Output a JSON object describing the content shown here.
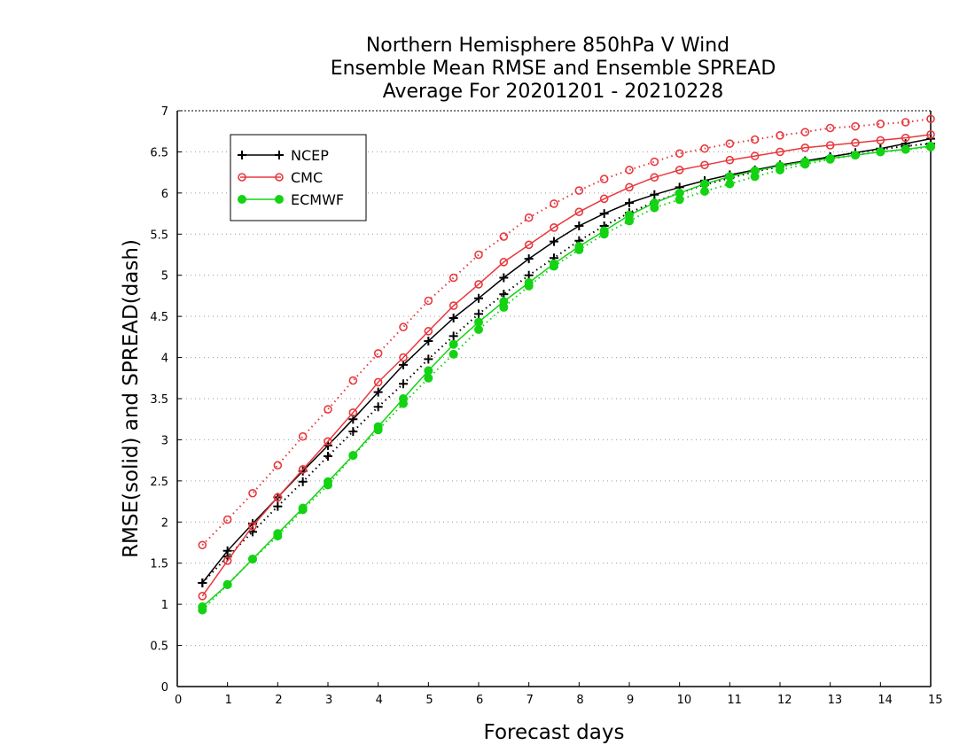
{
  "chart_data": {
    "type": "line",
    "title_lines": [
      "Northern Hemisphere 850hPa V Wind",
      "Ensemble Mean RMSE and Ensemble SPREAD",
      "Average For 20201201 - 20210228"
    ],
    "xlabel": "Forecast days",
    "ylabel": "RMSE(solid) and SPREAD(dash)",
    "xlim": [
      0,
      15
    ],
    "ylim": [
      0,
      7
    ],
    "xticks": [
      0,
      1,
      2,
      3,
      4,
      5,
      6,
      7,
      8,
      9,
      10,
      11,
      12,
      13,
      14,
      15
    ],
    "yticks": [
      0,
      0.5,
      1,
      1.5,
      2,
      2.5,
      3,
      3.5,
      4,
      4.5,
      5,
      5.5,
      6,
      6.5,
      7
    ],
    "ytick_labels": [
      "0",
      "0.5",
      "1",
      "1.5",
      "2",
      "2.5",
      "3",
      "3.5",
      "4",
      "4.5",
      "5",
      "5.5",
      "6",
      "6.5",
      "7"
    ],
    "grid": "horizontal-dotted",
    "legend_position": "top-left",
    "x": [
      0.5,
      1,
      1.5,
      2,
      2.5,
      3,
      3.5,
      4,
      4.5,
      5,
      5.5,
      6,
      6.5,
      7,
      7.5,
      8,
      8.5,
      9,
      9.5,
      10,
      10.5,
      11,
      11.5,
      12,
      12.5,
      13,
      13.5,
      14,
      14.5,
      15
    ],
    "series": [
      {
        "name": "NCEP",
        "color": "#000000",
        "marker": "plus",
        "rmse": [
          1.26,
          1.65,
          1.98,
          2.3,
          2.62,
          2.93,
          3.25,
          3.58,
          3.91,
          4.2,
          4.48,
          4.72,
          4.97,
          5.2,
          5.41,
          5.6,
          5.75,
          5.88,
          5.98,
          6.07,
          6.15,
          6.22,
          6.28,
          6.34,
          6.39,
          6.44,
          6.49,
          6.54,
          6.6,
          6.66
        ],
        "spread": [
          1.26,
          1.58,
          1.88,
          2.19,
          2.49,
          2.8,
          3.1,
          3.4,
          3.68,
          3.98,
          4.26,
          4.53,
          4.77,
          5.0,
          5.21,
          5.42,
          5.6,
          5.76,
          5.89,
          6.0,
          6.1,
          6.18,
          6.26,
          6.32,
          6.38,
          6.44,
          6.49,
          6.53,
          6.57,
          6.6
        ]
      },
      {
        "name": "CMC",
        "color": "#e8383d",
        "marker": "open-circle",
        "rmse": [
          1.1,
          1.53,
          1.95,
          2.3,
          2.64,
          2.98,
          3.33,
          3.7,
          4.0,
          4.32,
          4.63,
          4.89,
          5.16,
          5.37,
          5.58,
          5.77,
          5.93,
          6.07,
          6.19,
          6.28,
          6.34,
          6.4,
          6.45,
          6.5,
          6.55,
          6.58,
          6.61,
          6.64,
          6.67,
          6.71
        ],
        "spread": [
          1.72,
          2.03,
          2.35,
          2.69,
          3.04,
          3.37,
          3.72,
          4.05,
          4.37,
          4.69,
          4.97,
          5.25,
          5.47,
          5.7,
          5.87,
          6.03,
          6.17,
          6.28,
          6.38,
          6.48,
          6.54,
          6.6,
          6.65,
          6.7,
          6.74,
          6.79,
          6.81,
          6.84,
          6.86,
          6.9
        ]
      },
      {
        "name": "ECMWF",
        "color": "#13d313",
        "marker": "filled-circle",
        "rmse": [
          0.97,
          1.24,
          1.55,
          1.86,
          2.17,
          2.49,
          2.81,
          3.16,
          3.5,
          3.84,
          4.16,
          4.43,
          4.68,
          4.91,
          5.14,
          5.35,
          5.54,
          5.73,
          5.88,
          6.0,
          6.11,
          6.2,
          6.27,
          6.33,
          6.38,
          6.42,
          6.46,
          6.5,
          6.53,
          6.57
        ],
        "spread": [
          0.93,
          1.24,
          1.55,
          1.83,
          2.15,
          2.45,
          2.81,
          3.12,
          3.44,
          3.75,
          4.04,
          4.34,
          4.61,
          4.87,
          5.11,
          5.31,
          5.5,
          5.66,
          5.82,
          5.92,
          6.02,
          6.11,
          6.2,
          6.28,
          6.35,
          6.41,
          6.46,
          6.5,
          6.53,
          6.56
        ]
      }
    ]
  }
}
